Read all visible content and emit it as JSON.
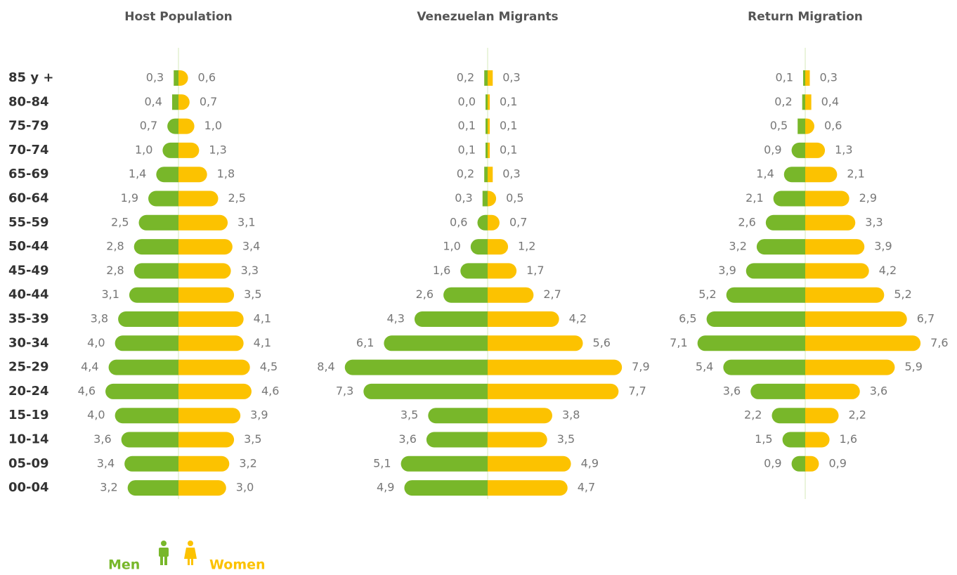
{
  "chart_data": [
    {
      "type": "pyramid",
      "title": "Host Population",
      "categories": [
        "85 y +",
        "80-84",
        "75-79",
        "70-74",
        "65-69",
        "60-64",
        "55-59",
        "50-44",
        "45-49",
        "40-44",
        "35-39",
        "30-34",
        "25-29",
        "20-24",
        "15-19",
        "10-14",
        "05-09",
        "00-04"
      ],
      "series": [
        {
          "name": "Men",
          "color": "#78b72a",
          "values": [
            0.3,
            0.4,
            0.7,
            1.0,
            1.4,
            1.9,
            2.5,
            2.8,
            2.8,
            3.1,
            3.8,
            4.0,
            4.4,
            4.6,
            4.0,
            3.6,
            3.4,
            3.2
          ],
          "value_labels": [
            "0,3",
            "0,4",
            "0,7",
            "1,0",
            "1,4",
            "1,9",
            "2,5",
            "2,8",
            "2,8",
            "3,1",
            "3,8",
            "4,0",
            "4,4",
            "4,6",
            "4,0",
            "3,6",
            "3,4",
            "3,2"
          ]
        },
        {
          "name": "Women",
          "color": "#fcc200",
          "values": [
            0.6,
            0.7,
            1.0,
            1.3,
            1.8,
            2.5,
            3.1,
            3.4,
            3.3,
            3.5,
            4.1,
            4.1,
            4.5,
            4.6,
            3.9,
            3.5,
            3.2,
            3.0
          ],
          "value_labels": [
            "0,6",
            "0,7",
            "1,0",
            "1,3",
            "1,8",
            "2,5",
            "3,1",
            "3,4",
            "3,3",
            "3,5",
            "4,1",
            "4,1",
            "4,5",
            "4,6",
            "3,9",
            "3,5",
            "3,2",
            "3,0"
          ]
        }
      ]
    },
    {
      "type": "pyramid",
      "title": "Venezuelan Migrants",
      "series": [
        {
          "color": "#78b72a",
          "values": [
            0.2,
            0.0,
            0.1,
            0.1,
            0.2,
            0.3,
            0.6,
            1.0,
            1.6,
            2.6,
            4.3,
            6.1,
            8.4,
            7.3,
            3.5,
            3.6,
            5.1,
            4.9
          ],
          "value_labels": [
            "0,2",
            "0,0",
            "0,1",
            "0,1",
            "0,2",
            "0,3",
            "0,6",
            "1,0",
            "1,6",
            "2,6",
            "4,3",
            "6,1",
            "8,4",
            "7,3",
            "3,5",
            "3,6",
            "5,1",
            "4,9"
          ]
        },
        {
          "color": "#fcc200",
          "values": [
            0.3,
            0.1,
            0.1,
            0.1,
            0.3,
            0.5,
            0.7,
            1.2,
            1.7,
            2.7,
            4.2,
            5.6,
            7.9,
            7.7,
            3.8,
            3.5,
            4.9,
            4.7
          ],
          "value_labels": [
            "0,3",
            "0,1",
            "0,1",
            "0,1",
            "0,3",
            "0,5",
            "0,7",
            "1,2",
            "1,7",
            "2,7",
            "4,2",
            "5,6",
            "7,9",
            "7,7",
            "3,8",
            "3,5",
            "4,9",
            "4,7"
          ]
        }
      ]
    },
    {
      "type": "pyramid",
      "title": "Return Migration",
      "series": [
        {
          "color": "#78b72a",
          "values": [
            0.1,
            0.2,
            0.5,
            0.9,
            1.4,
            2.1,
            2.6,
            3.2,
            3.9,
            5.2,
            6.5,
            7.1,
            5.4,
            3.6,
            2.2,
            1.5,
            0.9,
            null
          ],
          "value_labels": [
            "0,1",
            "0,2",
            "0,5",
            "0,9",
            "1,4",
            "2,1",
            "2,6",
            "3,2",
            "3,9",
            "5,2",
            "6,5",
            "7,1",
            "5,4",
            "3,6",
            "2,2",
            "1,5",
            "0,9",
            null
          ]
        },
        {
          "color": "#fcc200",
          "values": [
            0.3,
            0.4,
            0.6,
            1.3,
            2.1,
            2.9,
            3.3,
            3.9,
            4.2,
            5.2,
            6.7,
            7.6,
            5.9,
            3.6,
            2.2,
            1.6,
            0.9,
            null
          ],
          "value_labels": [
            "0,3",
            "0,4",
            "0,6",
            "1,3",
            "2,1",
            "2,9",
            "3,3",
            "3,9",
            "4,2",
            "5,2",
            "6,7",
            "7,6",
            "5,9",
            "3,6",
            "2,2",
            "1,6",
            "0,9",
            null
          ]
        }
      ]
    }
  ]
}
